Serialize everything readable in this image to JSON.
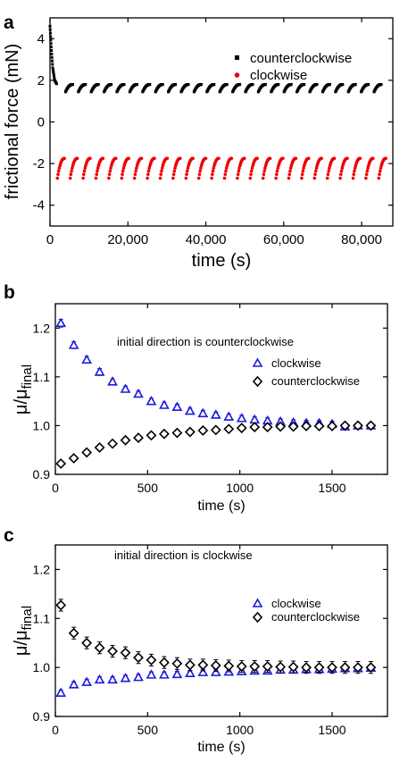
{
  "chart_data": [
    {
      "panel": "a",
      "type": "scatter",
      "xlabel": "time (s)",
      "ylabel": "frictional force (mN)",
      "xlim": [
        0,
        88000
      ],
      "ylim": [
        -5,
        5
      ],
      "xticks": [
        0,
        20000,
        40000,
        60000,
        80000
      ],
      "xtick_labels": [
        "0",
        "20,000",
        "40,000",
        "60,000",
        "80,000"
      ],
      "yticks": [
        -4,
        -2,
        0,
        2,
        4
      ],
      "ytick_labels": [
        "-4",
        "-2",
        "0",
        "2",
        "4"
      ],
      "legend_position": "top-right",
      "series": [
        {
          "name": "counterclockwise",
          "color": "#000000",
          "marker": "square",
          "initial_transient": [
            [
              0,
              4.6
            ],
            [
              300,
              3.6
            ],
            [
              700,
              2.6
            ],
            [
              1200,
              2.0
            ],
            [
              1800,
              1.8
            ]
          ],
          "segment_x_start": [
            4000,
            7300,
            10600,
            13900,
            17200,
            20500,
            23800,
            27100,
            30400,
            33700,
            37000,
            40300,
            43600,
            46900,
            50200,
            53500,
            56800,
            60100,
            63400,
            66700,
            70000,
            73300,
            76600,
            79900,
            83200
          ],
          "segment_duration": 1800,
          "y_start": 1.45,
          "y_end": 1.8
        },
        {
          "name": "clockwise",
          "color": "#ee0000",
          "marker": "circle",
          "segment_x_start": [
            1900,
            5200,
            8500,
            11800,
            15100,
            18400,
            21700,
            25000,
            28300,
            31600,
            34900,
            38200,
            41500,
            44800,
            48100,
            51400,
            54700,
            58000,
            61300,
            64600,
            67900,
            71200,
            74500,
            77800,
            81100,
            84400
          ],
          "segment_duration": 1800,
          "y_start": -2.7,
          "y_end": -1.75
        }
      ]
    },
    {
      "panel": "b",
      "type": "scatter",
      "annotation": "initial direction is counterclockwise",
      "xlabel": "time (s)",
      "ylabel_main": "μ/μ",
      "ylabel_sub": "final",
      "xlim": [
        0,
        1800
      ],
      "ylim": [
        0.9,
        1.25
      ],
      "xticks": [
        0,
        500,
        1000,
        1500
      ],
      "xtick_labels": [
        "0",
        "500",
        "1000",
        "1500"
      ],
      "yticks": [
        0.9,
        1.0,
        1.1,
        1.2
      ],
      "ytick_labels": [
        "0.9",
        "1.0",
        "1.1",
        "1.2"
      ],
      "x": [
        30,
        100,
        170,
        240,
        310,
        380,
        450,
        520,
        590,
        660,
        730,
        800,
        870,
        940,
        1010,
        1080,
        1150,
        1220,
        1290,
        1360,
        1430,
        1500,
        1570,
        1640,
        1710
      ],
      "series": [
        {
          "name": "clockwise",
          "color": "#1a1adc",
          "marker": "triangle",
          "values": [
            1.21,
            1.165,
            1.135,
            1.11,
            1.09,
            1.075,
            1.065,
            1.05,
            1.042,
            1.038,
            1.03,
            1.025,
            1.022,
            1.018,
            1.015,
            1.012,
            1.01,
            1.008,
            1.006,
            1.005,
            1.005,
            1.003,
            0.998,
            1.0,
            1.0
          ],
          "errors": [
            0.008,
            0.007,
            0.007,
            0.007,
            0.006,
            0.006,
            0.006,
            0.006,
            0.006,
            0.006,
            0.006,
            0.006,
            0.006,
            0.006,
            0.006,
            0.006,
            0.006,
            0.006,
            0.006,
            0.006,
            0.006,
            0.006,
            0.006,
            0.006,
            0.006
          ]
        },
        {
          "name": "counterclockwise",
          "color": "#000000",
          "marker": "diamond",
          "values": [
            0.922,
            0.933,
            0.945,
            0.955,
            0.963,
            0.97,
            0.975,
            0.98,
            0.983,
            0.985,
            0.987,
            0.99,
            0.991,
            0.993,
            0.995,
            0.997,
            0.997,
            0.998,
            0.998,
            0.999,
            0.999,
            0.999,
            1.0,
            1.0,
            1.0
          ],
          "errors": [
            0.004,
            0.004,
            0.004,
            0.004,
            0.004,
            0.004,
            0.004,
            0.004,
            0.004,
            0.004,
            0.004,
            0.004,
            0.004,
            0.004,
            0.004,
            0.004,
            0.004,
            0.004,
            0.004,
            0.004,
            0.004,
            0.004,
            0.004,
            0.004,
            0.004
          ]
        }
      ]
    },
    {
      "panel": "c",
      "type": "scatter",
      "annotation": "initial direction is clockwise",
      "xlabel": "time (s)",
      "ylabel_main": "μ/μ",
      "ylabel_sub": "final",
      "xlim": [
        0,
        1800
      ],
      "ylim": [
        0.9,
        1.25
      ],
      "xticks": [
        0,
        500,
        1000,
        1500
      ],
      "xtick_labels": [
        "0",
        "500",
        "1000",
        "1500"
      ],
      "yticks": [
        0.9,
        1.0,
        1.1,
        1.2
      ],
      "ytick_labels": [
        "0.9",
        "1.0",
        "1.1",
        "1.2"
      ],
      "x": [
        30,
        100,
        170,
        240,
        310,
        380,
        450,
        520,
        590,
        660,
        730,
        800,
        870,
        940,
        1010,
        1080,
        1150,
        1220,
        1290,
        1360,
        1430,
        1500,
        1570,
        1640,
        1710
      ],
      "series": [
        {
          "name": "clockwise",
          "color": "#1a1adc",
          "marker": "triangle",
          "values": [
            0.948,
            0.965,
            0.97,
            0.975,
            0.975,
            0.978,
            0.98,
            0.985,
            0.985,
            0.986,
            0.988,
            0.99,
            0.99,
            0.991,
            0.992,
            0.993,
            0.993,
            0.995,
            0.995,
            0.996,
            0.996,
            0.997,
            0.998,
            0.998,
            0.999
          ],
          "errors": [
            0.006,
            0.006,
            0.006,
            0.006,
            0.006,
            0.006,
            0.006,
            0.006,
            0.006,
            0.006,
            0.006,
            0.006,
            0.006,
            0.006,
            0.006,
            0.006,
            0.006,
            0.006,
            0.006,
            0.006,
            0.006,
            0.006,
            0.006,
            0.006,
            0.006
          ]
        },
        {
          "name": "counterclockwise",
          "color": "#000000",
          "marker": "diamond",
          "values": [
            1.127,
            1.07,
            1.05,
            1.04,
            1.033,
            1.03,
            1.02,
            1.015,
            1.01,
            1.008,
            1.005,
            1.005,
            1.004,
            1.003,
            1.002,
            1.002,
            1.002,
            1.001,
            1.001,
            1.0,
            1.0,
            1.0,
            1.0,
            1.0,
            1.0
          ],
          "errors": [
            0.012,
            0.012,
            0.012,
            0.012,
            0.012,
            0.012,
            0.012,
            0.012,
            0.012,
            0.012,
            0.012,
            0.012,
            0.012,
            0.012,
            0.012,
            0.012,
            0.012,
            0.012,
            0.012,
            0.012,
            0.012,
            0.012,
            0.012,
            0.012,
            0.012
          ]
        }
      ]
    }
  ]
}
